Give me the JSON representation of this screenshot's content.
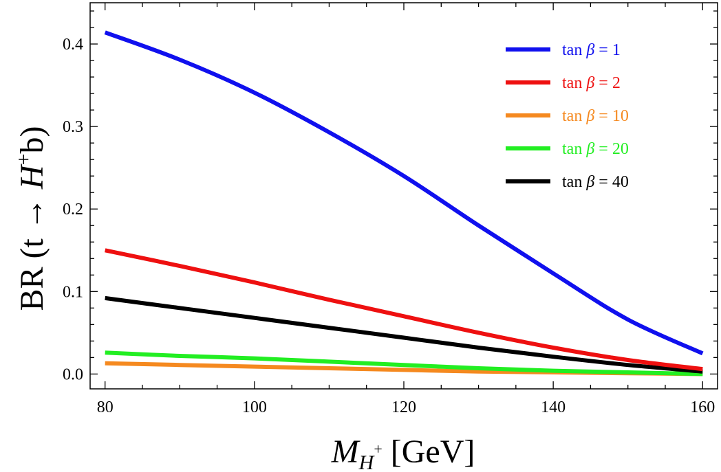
{
  "chart_data": {
    "type": "line",
    "title": "",
    "xlabel": "M_{H+} [GeV]",
    "xlabel_parts": {
      "main": "M",
      "sub": "H",
      "sup": "+",
      "unit": " [GeV]"
    },
    "ylabel": "BR (t → H⁺b)",
    "ylabel_parts": {
      "pre": "BR (t → ",
      "italic": "H",
      "sup": "+",
      "post": "b)"
    },
    "xlim": [
      78,
      162
    ],
    "ylim": [
      -0.018,
      0.45
    ],
    "xticks": [
      80,
      100,
      120,
      140,
      160
    ],
    "xtick_labels": [
      "80",
      "100",
      "120",
      "140",
      "160"
    ],
    "yticks": [
      0.0,
      0.1,
      0.2,
      0.3,
      0.4
    ],
    "ytick_labels": [
      "0.0",
      "0.1",
      "0.2",
      "0.3",
      "0.4"
    ],
    "grid": false,
    "legend_position": "top-right",
    "x": [
      80,
      90,
      100,
      110,
      120,
      130,
      140,
      150,
      160
    ],
    "series": [
      {
        "name": "tan β = 1",
        "prefix": "tan ",
        "italic": "β",
        "suffix": " = 1",
        "color": "#1010ee",
        "values": [
          0.414,
          0.381,
          0.341,
          0.293,
          0.24,
          0.18,
          0.122,
          0.066,
          0.025
        ]
      },
      {
        "name": "tan β = 2",
        "prefix": "tan ",
        "italic": "β",
        "suffix": " = 2",
        "color": "#ee1010",
        "values": [
          0.15,
          0.131,
          0.111,
          0.09,
          0.07,
          0.05,
          0.032,
          0.017,
          0.006
        ]
      },
      {
        "name": "tan β = 10",
        "prefix": "tan ",
        "italic": "β",
        "suffix": " = 10",
        "color": "#f5891f",
        "values": [
          0.013,
          0.011,
          0.009,
          0.007,
          0.005,
          0.003,
          0.002,
          0.001,
          0.0
        ]
      },
      {
        "name": "tan β = 20",
        "prefix": "tan ",
        "italic": "β",
        "suffix": " = 20",
        "color": "#22ee22",
        "values": [
          0.026,
          0.022,
          0.019,
          0.015,
          0.011,
          0.007,
          0.004,
          0.002,
          0.0
        ]
      },
      {
        "name": "tan β = 40",
        "prefix": "tan ",
        "italic": "β",
        "suffix": " = 40",
        "color": "#000000",
        "values": [
          0.092,
          0.08,
          0.068,
          0.056,
          0.044,
          0.032,
          0.021,
          0.011,
          0.003
        ]
      }
    ],
    "draw_order": [
      2,
      3,
      4,
      1,
      0
    ]
  }
}
